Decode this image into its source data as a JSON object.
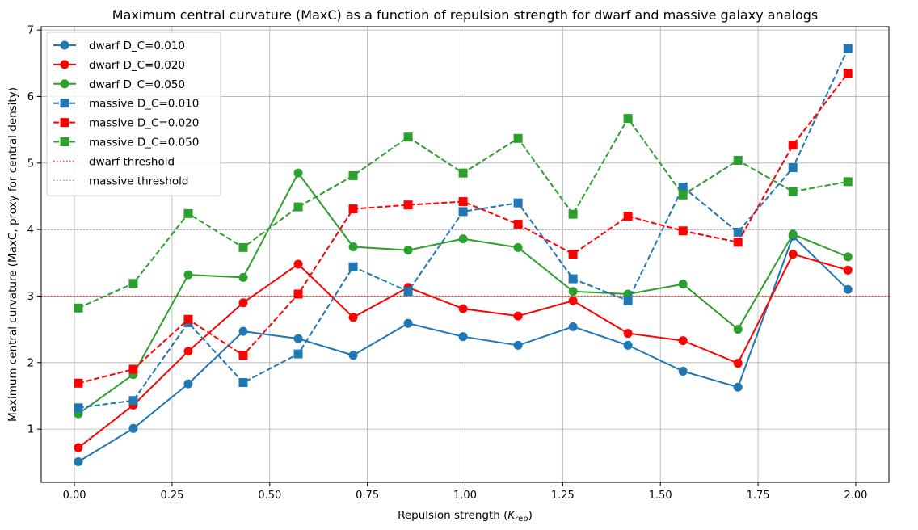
{
  "chart_data": {
    "type": "line",
    "title": "Maximum central curvature (MaxC) as a function of repulsion strength for dwarf and massive galaxy analogs",
    "xlabel_main": "Repulsion strength (",
    "xlabel_sym": "K",
    "xlabel_sub": "rep",
    "xlabel_end": ")",
    "ylabel": "Maximum central curvature (MaxC, proxy for central density)",
    "xlim": [
      -0.085,
      2.085
    ],
    "ylim": [
      0.2,
      7.05
    ],
    "xticks": [
      0.0,
      0.25,
      0.5,
      0.75,
      1.0,
      1.25,
      1.5,
      1.75,
      2.0
    ],
    "xtick_labels": [
      "0.00",
      "0.25",
      "0.50",
      "0.75",
      "1.00",
      "1.25",
      "1.50",
      "1.75",
      "2.00"
    ],
    "yticks": [
      1,
      2,
      3,
      4,
      5,
      6,
      7
    ],
    "ytick_labels": [
      "1",
      "2",
      "3",
      "4",
      "5",
      "6",
      "7"
    ],
    "grid": true,
    "legend_position": "top-left",
    "x": [
      0.01,
      0.1507,
      0.2914,
      0.4321,
      0.5729,
      0.7136,
      0.8543,
      0.995,
      1.1357,
      1.2764,
      1.4171,
      1.5579,
      1.6986,
      1.8393,
      1.98
    ],
    "series": [
      {
        "name": "dwarf D_C=0.010",
        "color": "#1f77b4",
        "style": "solid",
        "marker": "circle",
        "values": [
          0.51,
          1.01,
          1.68,
          2.47,
          2.36,
          2.11,
          2.59,
          2.39,
          2.26,
          2.54,
          2.26,
          1.87,
          1.63,
          3.9,
          3.1
        ]
      },
      {
        "name": "dwarf D_C=0.020",
        "color": "#ff0000",
        "style": "solid",
        "marker": "circle",
        "values": [
          0.72,
          1.36,
          2.17,
          2.9,
          3.48,
          2.68,
          3.13,
          2.81,
          2.7,
          2.93,
          2.44,
          2.33,
          1.99,
          3.63,
          3.39
        ]
      },
      {
        "name": "dwarf D_C=0.050",
        "color": "#2ca02c",
        "style": "solid",
        "marker": "circle",
        "values": [
          1.23,
          1.82,
          3.32,
          3.28,
          4.85,
          3.74,
          3.69,
          3.86,
          3.73,
          3.07,
          3.03,
          3.18,
          2.5,
          3.93,
          3.59
        ]
      },
      {
        "name": "massive D_C=0.010",
        "color": "#1f77b4",
        "style": "dashed",
        "marker": "square",
        "values": [
          1.32,
          1.43,
          2.6,
          1.7,
          2.13,
          3.44,
          3.07,
          4.27,
          4.4,
          3.26,
          2.93,
          4.64,
          3.96,
          4.93,
          6.72
        ]
      },
      {
        "name": "massive D_C=0.020",
        "color": "#ff0000",
        "style": "dashed",
        "marker": "square",
        "values": [
          1.69,
          1.9,
          2.65,
          2.11,
          3.03,
          4.31,
          4.37,
          4.42,
          4.08,
          3.63,
          4.2,
          3.98,
          3.81,
          5.27,
          6.35
        ]
      },
      {
        "name": "massive D_C=0.050",
        "color": "#2ca02c",
        "style": "dashed",
        "marker": "square",
        "values": [
          2.82,
          3.19,
          4.24,
          3.73,
          4.34,
          4.81,
          5.39,
          4.85,
          5.37,
          4.23,
          5.67,
          4.52,
          5.04,
          4.57,
          4.72
        ]
      }
    ],
    "thresholds": [
      {
        "name": "dwarf threshold",
        "value": 3.0,
        "color": "#ff0000"
      },
      {
        "name": "massive threshold",
        "value": 4.0,
        "color": "#9467bd"
      }
    ]
  }
}
